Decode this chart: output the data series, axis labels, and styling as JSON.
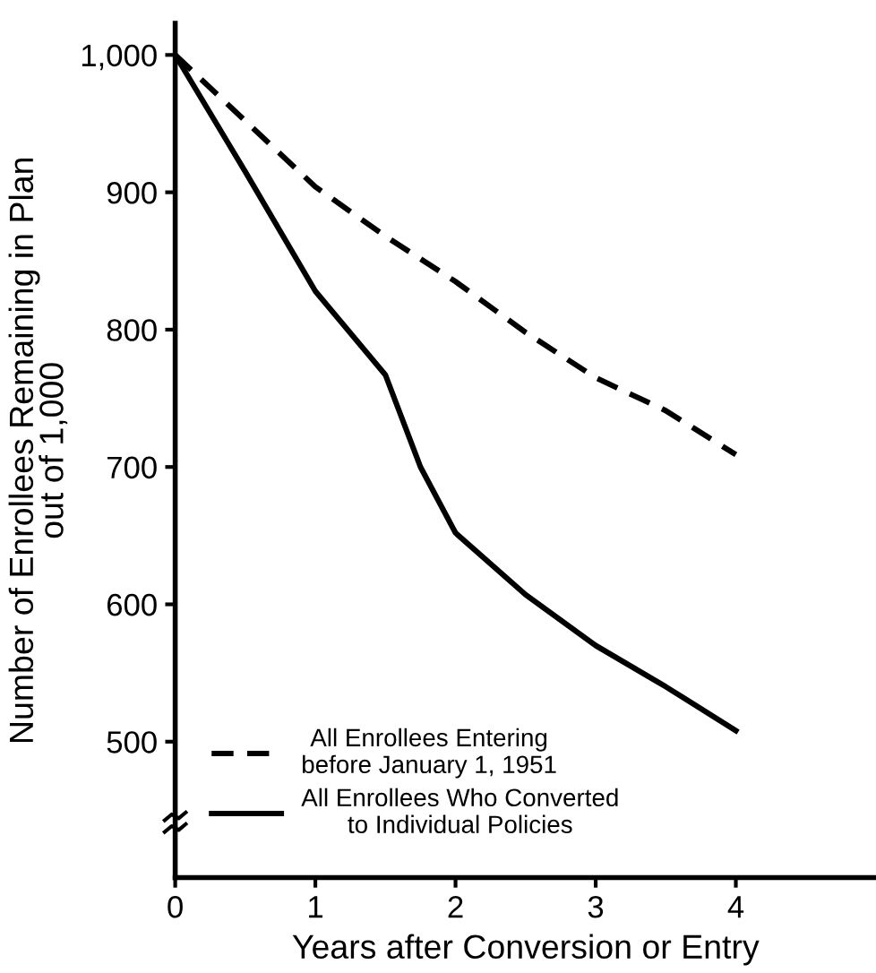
{
  "chart_data": {
    "type": "line",
    "xlabel": "Years after Conversion or Entry",
    "ylabel": "Number of Enrollees Remaining in Plan\nout of 1,000",
    "xlim": [
      0,
      5
    ],
    "xticks": [
      0,
      1,
      2,
      3,
      4
    ],
    "ylim": [
      401,
      1023
    ],
    "yticks": [
      500,
      600,
      700,
      {
        "value": 800,
        "label": "800"
      },
      900,
      {
        "value": 1000,
        "label": "1,000"
      }
    ],
    "grid": false,
    "legend": "bottom left",
    "marker": "none",
    "series": [
      {
        "name": "All Enrollees Entering\nbefore January 1, 1951",
        "color": "#000000",
        "line_style": "dashed",
        "x": [
          0,
          1,
          1.5,
          2,
          2.5,
          3,
          3.5,
          4
        ],
        "values": [
          1000,
          904,
          868,
          835,
          798,
          765,
          741,
          709
        ]
      },
      {
        "name": "All Enrollees Who Converted\nto Individual Policies",
        "color": "#000000",
        "line_style": "solid",
        "x": [
          0,
          0.5,
          1,
          1.5,
          1.75,
          2,
          2.5,
          3,
          3.5,
          4
        ],
        "values": [
          1000,
          915,
          828,
          767,
          700,
          652,
          607,
          570,
          540,
          508
        ]
      }
    ]
  }
}
